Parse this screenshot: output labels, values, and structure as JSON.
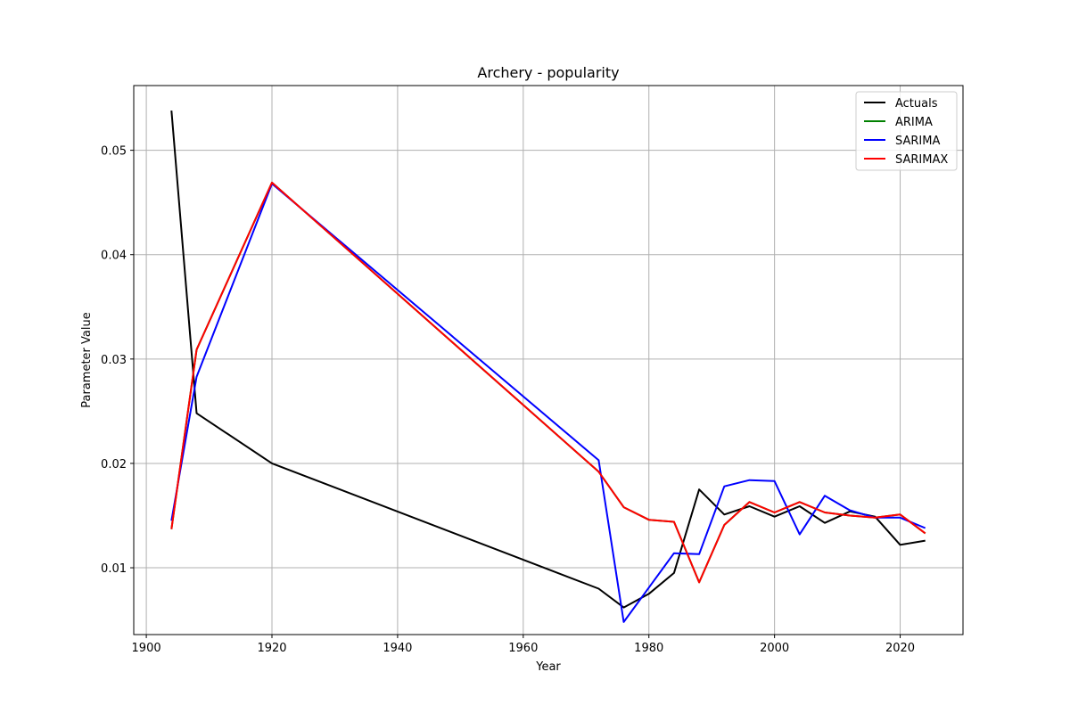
{
  "chart_data": {
    "type": "line",
    "title": "Archery - popularity",
    "xlabel": "Year",
    "ylabel": "Parameter Value",
    "xlim": [
      1898,
      2030
    ],
    "ylim": [
      0.0036,
      0.0562
    ],
    "xticks": [
      1900,
      1920,
      1940,
      1960,
      1980,
      2000,
      2020
    ],
    "yticks": [
      0.01,
      0.02,
      0.03,
      0.04,
      0.05
    ],
    "xtick_labels": [
      "1900",
      "1920",
      "1940",
      "1960",
      "1980",
      "2000",
      "2020"
    ],
    "ytick_labels": [
      "0.01",
      "0.02",
      "0.03",
      "0.04",
      "0.05"
    ],
    "grid": true,
    "legend_position": "top-right",
    "series": [
      {
        "name": "Actuals",
        "color": "#000000",
        "x": [
          1904,
          1908,
          1920,
          1972,
          1976,
          1980,
          1984,
          1988,
          1992,
          1996,
          2000,
          2004,
          2008,
          2012,
          2016,
          2020,
          2024
        ],
        "y": [
          0.0538,
          0.0248,
          0.02,
          0.008,
          0.0062,
          0.0075,
          0.0095,
          0.0175,
          0.0151,
          0.0159,
          0.0149,
          0.0159,
          0.0143,
          0.0154,
          0.0149,
          0.0122,
          0.0126
        ]
      },
      {
        "name": "ARIMA",
        "color": "#008000",
        "x": [
          1904,
          1908,
          1920,
          1972,
          1976,
          1980,
          1984,
          1988,
          1992,
          1996,
          2000,
          2004,
          2008,
          2012,
          2016,
          2020,
          2024
        ],
        "y": [
          0.0137,
          0.0309,
          0.0469,
          0.0192,
          0.0158,
          0.0146,
          0.0144,
          0.0086,
          0.0141,
          0.0163,
          0.0153,
          0.0163,
          0.0153,
          0.015,
          0.0148,
          0.0151,
          0.0133
        ]
      },
      {
        "name": "SARIMA",
        "color": "#0000ff",
        "x": [
          1904,
          1908,
          1920,
          1972,
          1976,
          1980,
          1984,
          1988,
          1992,
          1996,
          2000,
          2004,
          2008,
          2012,
          2016,
          2020,
          2024
        ],
        "y": [
          0.0145,
          0.0283,
          0.0468,
          0.0203,
          0.0048,
          0.0081,
          0.0114,
          0.0113,
          0.0178,
          0.0184,
          0.0183,
          0.0132,
          0.0169,
          0.0155,
          0.0148,
          0.0148,
          0.0138
        ]
      },
      {
        "name": "SARIMAX",
        "color": "#ff0000",
        "x": [
          1904,
          1908,
          1920,
          1972,
          1976,
          1980,
          1984,
          1988,
          1992,
          1996,
          2000,
          2004,
          2008,
          2012,
          2016,
          2020,
          2024
        ],
        "y": [
          0.0137,
          0.0309,
          0.0469,
          0.0192,
          0.0158,
          0.0146,
          0.0144,
          0.0086,
          0.0141,
          0.0163,
          0.0153,
          0.0163,
          0.0153,
          0.015,
          0.0148,
          0.0151,
          0.0133
        ]
      }
    ]
  }
}
